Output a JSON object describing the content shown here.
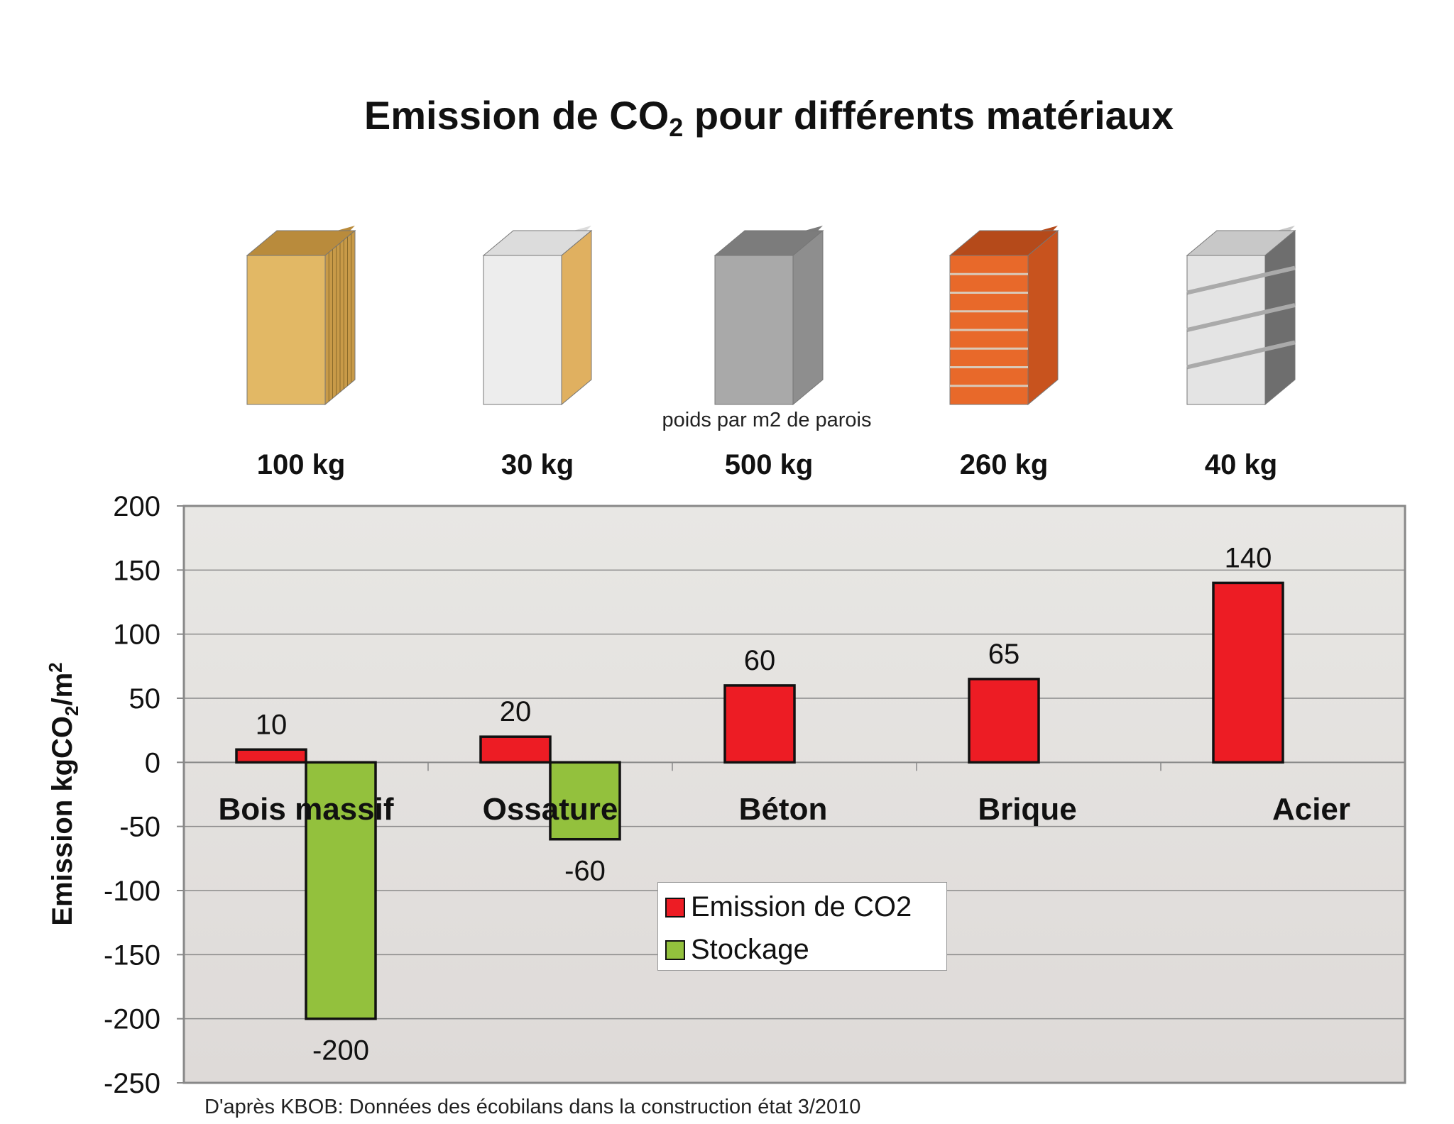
{
  "title": {
    "main": "Emission de CO",
    "sub": "2",
    "rest": " pour différents matériaux"
  },
  "subtitle": "poids par m2 de parois",
  "footer": "D'après KBOB: Données des écobilans dans la construction état 3/2010",
  "materials": [
    {
      "name": "wood-panel",
      "weight": "100 kg",
      "front": "#E2B865",
      "side": "#C89A48",
      "top": "#B98B3C"
    },
    {
      "name": "timber-frame-panel",
      "weight": "30 kg",
      "front": "#EDEDED",
      "side": "#E0B060",
      "top": "#DCDCDC"
    },
    {
      "name": "concrete-panel",
      "weight": "500 kg",
      "front": "#A9A9A9",
      "side": "#8E8E8E",
      "top": "#7C7C7C"
    },
    {
      "name": "brick-wall",
      "weight": "260 kg",
      "front": "#E8692A",
      "side": "#C8531E",
      "top": "#B54A1A"
    },
    {
      "name": "steel-panel",
      "weight": "40 kg",
      "front": "#E4E4E4",
      "side": "#6E6E6E",
      "top": "#C8C8C8"
    }
  ],
  "chart_data": {
    "type": "bar",
    "title": "Emission de CO2 pour différents matériaux",
    "ylabel": {
      "main": "Emission kgCO",
      "sub": "2",
      "mid": "/m",
      "sup": "2"
    },
    "xlabel": "",
    "categories": [
      "Bois massif",
      "Ossature",
      "Béton",
      "Brique",
      "Acier"
    ],
    "series": [
      {
        "name": "Emission de CO2",
        "color": "#ED1C24",
        "values": [
          10,
          20,
          60,
          65,
          140
        ]
      },
      {
        "name": "Stockage",
        "color": "#93C13D",
        "values": [
          -200,
          -60,
          null,
          null,
          null
        ]
      }
    ],
    "ylim": [
      -250,
      200
    ],
    "yticks": [
      200,
      150,
      100,
      50,
      0,
      -50,
      -100,
      -150,
      -200,
      -250
    ],
    "grid": true,
    "legend": "center"
  }
}
